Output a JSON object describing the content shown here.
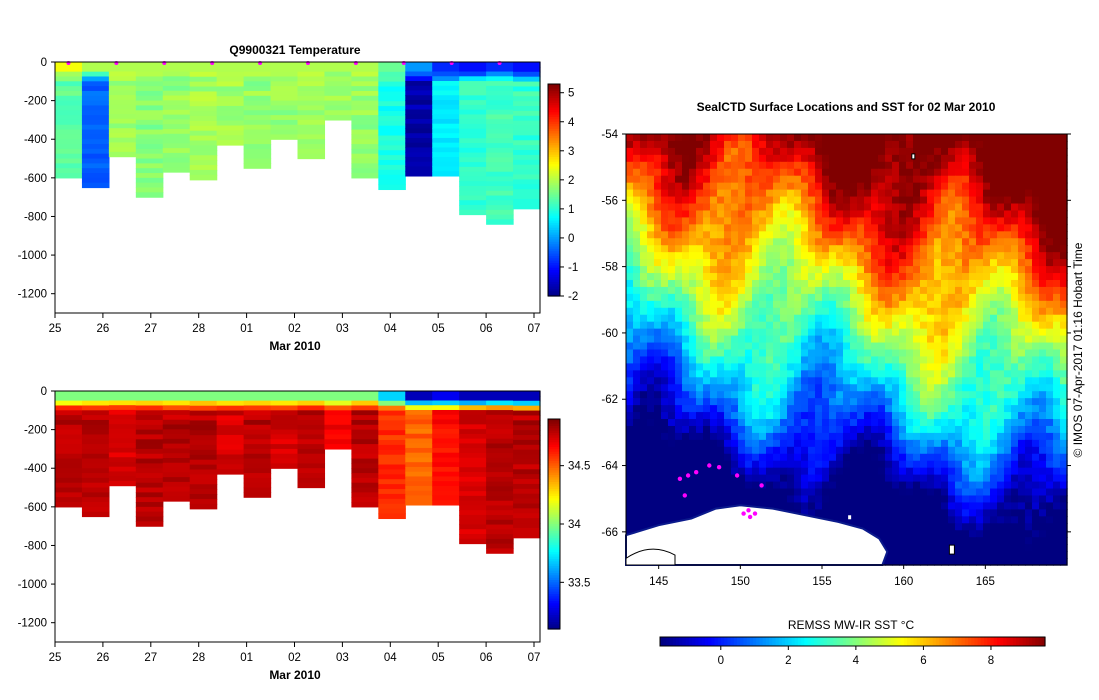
{
  "figure_title": "Q9900321  Temperature",
  "map_title": "SealCTD Surface Locations and SST for 02 Mar 2010",
  "credit": "© IMOS 07-Apr-2017 01:16 Hobart Time",
  "colors": {
    "profile_dots": "#ff00ff",
    "sea_ice": "#ffffff",
    "land_edge": "#000000"
  },
  "chart_data": [
    {
      "type": "heatmap",
      "name": "temperature-section",
      "title": "Q9900321  Temperature",
      "xlabel": "Mar 2010",
      "ylabel": "",
      "x_tick_labels": [
        "25",
        "26",
        "27",
        "28",
        "01",
        "02",
        "03",
        "04",
        "05",
        "06",
        "07"
      ],
      "y_tick_labels": [
        "0",
        "-200",
        "-400",
        "-600",
        "-800",
        "-1000",
        "-1200"
      ],
      "ylim": [
        -1300,
        0
      ],
      "colorbar": {
        "ticks": [
          "5",
          "4",
          "3",
          "2",
          "1",
          "0",
          "-1",
          "-2"
        ],
        "range": [
          -2,
          5.3
        ],
        "colormap": "jet"
      },
      "profiles": [
        {
          "max_depth": 600,
          "surface": 2.5,
          "body": 1.4
        },
        {
          "max_depth": 650,
          "surface": 2.0,
          "body": -0.4
        },
        {
          "max_depth": 490,
          "surface": 2.0,
          "body": 1.9
        },
        {
          "max_depth": 700,
          "surface": 2.0,
          "body": 1.7
        },
        {
          "max_depth": 570,
          "surface": 2.0,
          "body": 1.8
        },
        {
          "max_depth": 610,
          "surface": 2.0,
          "body": 1.9
        },
        {
          "max_depth": 430,
          "surface": 2.0,
          "body": 1.9
        },
        {
          "max_depth": 550,
          "surface": 2.0,
          "body": 1.8
        },
        {
          "max_depth": 400,
          "surface": 2.0,
          "body": 1.8
        },
        {
          "max_depth": 500,
          "surface": 2.0,
          "body": 1.9
        },
        {
          "max_depth": 300,
          "surface": 2.0,
          "body": 1.9
        },
        {
          "max_depth": 600,
          "surface": 2.0,
          "body": 1.8
        },
        {
          "max_depth": 660,
          "surface": 1.5,
          "body": 0.9
        },
        {
          "max_depth": 590,
          "surface": 0.0,
          "body": -1.7
        },
        {
          "max_depth": 590,
          "surface": -0.8,
          "body": 0.6
        },
        {
          "max_depth": 790,
          "surface": -1.0,
          "body": 1.1
        },
        {
          "max_depth": 840,
          "surface": -0.8,
          "body": 1.2
        },
        {
          "max_depth": 760,
          "surface": -1.0,
          "body": 1.1
        }
      ]
    },
    {
      "type": "heatmap",
      "name": "salinity-section",
      "title": "",
      "xlabel": "Mar 2010",
      "ylabel": "",
      "x_tick_labels": [
        "25",
        "26",
        "27",
        "28",
        "01",
        "02",
        "03",
        "04",
        "05",
        "06",
        "07"
      ],
      "y_tick_labels": [
        "0",
        "-200",
        "-400",
        "-600",
        "-800",
        "-1000",
        "-1200"
      ],
      "ylim": [
        -1300,
        0
      ],
      "colorbar": {
        "ticks": [
          "34.5",
          "34",
          "33.5"
        ],
        "range": [
          33.1,
          34.9
        ],
        "colormap": "jet"
      },
      "profiles": [
        {
          "max_depth": 600,
          "surface": 34.0,
          "body": 34.8
        },
        {
          "max_depth": 650,
          "surface": 34.0,
          "body": 34.8
        },
        {
          "max_depth": 490,
          "surface": 34.0,
          "body": 34.75
        },
        {
          "max_depth": 700,
          "surface": 34.0,
          "body": 34.8
        },
        {
          "max_depth": 570,
          "surface": 34.0,
          "body": 34.8
        },
        {
          "max_depth": 610,
          "surface": 34.0,
          "body": 34.8
        },
        {
          "max_depth": 430,
          "surface": 34.0,
          "body": 34.75
        },
        {
          "max_depth": 550,
          "surface": 34.0,
          "body": 34.8
        },
        {
          "max_depth": 400,
          "surface": 34.0,
          "body": 34.75
        },
        {
          "max_depth": 500,
          "surface": 34.0,
          "body": 34.8
        },
        {
          "max_depth": 300,
          "surface": 34.0,
          "body": 34.7
        },
        {
          "max_depth": 600,
          "surface": 34.0,
          "body": 34.8
        },
        {
          "max_depth": 660,
          "surface": 33.7,
          "body": 34.6
        },
        {
          "max_depth": 590,
          "surface": 33.2,
          "body": 34.5
        },
        {
          "max_depth": 590,
          "surface": 33.3,
          "body": 34.65
        },
        {
          "max_depth": 790,
          "surface": 33.2,
          "body": 34.75
        },
        {
          "max_depth": 840,
          "surface": 33.2,
          "body": 34.8
        },
        {
          "max_depth": 760,
          "surface": 33.2,
          "body": 34.8
        }
      ]
    },
    {
      "type": "heatmap",
      "name": "sst-map",
      "title": "SealCTD Surface Locations and SST for 02 Mar 2010",
      "x_tick_labels": [
        "145",
        "150",
        "155",
        "160",
        "165"
      ],
      "y_tick_labels": [
        "-54",
        "-56",
        "-58",
        "-60",
        "-62",
        "-64",
        "-66"
      ],
      "xlim": [
        143,
        170
      ],
      "ylim": [
        -67,
        -54
      ],
      "colorbar": {
        "label": "REMSS MW-IR SST °C",
        "ticks": [
          "0",
          "2",
          "4",
          "6",
          "8"
        ],
        "range": [
          -1.8,
          9.6
        ],
        "colormap": "jet"
      },
      "surface_locations": [
        {
          "lon": 146.3,
          "lat": -64.4
        },
        {
          "lon": 146.8,
          "lat": -64.3
        },
        {
          "lon": 147.3,
          "lat": -64.2
        },
        {
          "lon": 148.1,
          "lat": -64.0
        },
        {
          "lon": 148.7,
          "lat": -64.05
        },
        {
          "lon": 149.8,
          "lat": -64.3
        },
        {
          "lon": 151.3,
          "lat": -64.6
        },
        {
          "lon": 146.6,
          "lat": -64.9
        },
        {
          "lon": 150.2,
          "lat": -65.45
        },
        {
          "lon": 150.6,
          "lat": -65.55
        },
        {
          "lon": 150.9,
          "lat": -65.45
        },
        {
          "lon": 150.5,
          "lat": -65.35
        }
      ]
    }
  ]
}
